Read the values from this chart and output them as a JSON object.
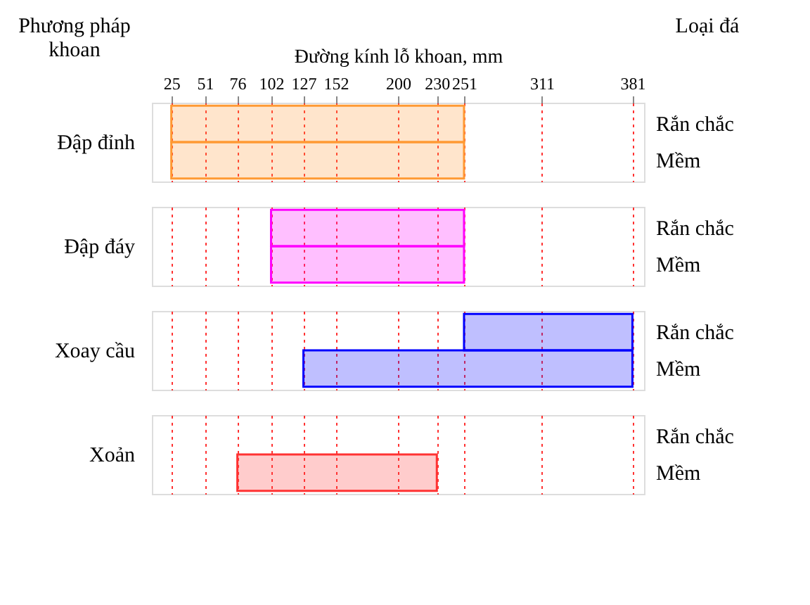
{
  "chart_data": [
    {
      "type": "bar",
      "orientation": "horizontal",
      "xlabel": "Đường kính lỗ khoan, mm",
      "annotations": [
        "Phương  pháp\nkhoan",
        "Loại đá"
      ],
      "ylabel": "Đập đỉnh",
      "categories": [
        "Rắn chắc",
        "Mềm"
      ],
      "base": [
        25,
        25
      ],
      "values": [
        226,
        226
      ],
      "color": "#ff9933",
      "xlim": [
        10,
        390
      ],
      "xticks": [
        25,
        51,
        76,
        102,
        127,
        152,
        200,
        230,
        251,
        311,
        381
      ],
      "grid": "x"
    },
    {
      "type": "bar",
      "orientation": "horizontal",
      "ylabel": "Đập đáy",
      "categories": [
        "Rắn chắc",
        "Mềm"
      ],
      "base": [
        102,
        102
      ],
      "values": [
        149,
        149
      ],
      "color": "#ff00ff",
      "xlim": [
        10,
        390
      ],
      "xticks": [
        25,
        51,
        76,
        102,
        127,
        152,
        200,
        230,
        251,
        311,
        381
      ],
      "grid": "x",
      "tick_labels": "y"
    },
    {
      "type": "bar",
      "orientation": "horizontal",
      "ylabel": "Xoay cầu",
      "categories": [
        "Rắn chắc",
        "Mềm"
      ],
      "base": [
        251,
        127
      ],
      "values": [
        130,
        254
      ],
      "color": "#0000ff",
      "xlim": [
        10,
        390
      ],
      "xticks": [
        25,
        51,
        76,
        102,
        127,
        152,
        200,
        230,
        251,
        311,
        381
      ],
      "grid": "x",
      "tick_labels": "y"
    },
    {
      "type": "bar",
      "orientation": "horizontal",
      "ylabel": "Xoản",
      "categories": [
        "Rắn chắc",
        "Mềm"
      ],
      "base": [
        null,
        76
      ],
      "values": [
        null,
        154
      ],
      "color": "#ff3333",
      "xlim": [
        10,
        390
      ],
      "xticks": [
        25,
        51,
        76,
        102,
        127,
        152,
        200,
        230,
        251,
        311,
        381
      ],
      "grid": "x",
      "tick_labels": "y"
    }
  ]
}
